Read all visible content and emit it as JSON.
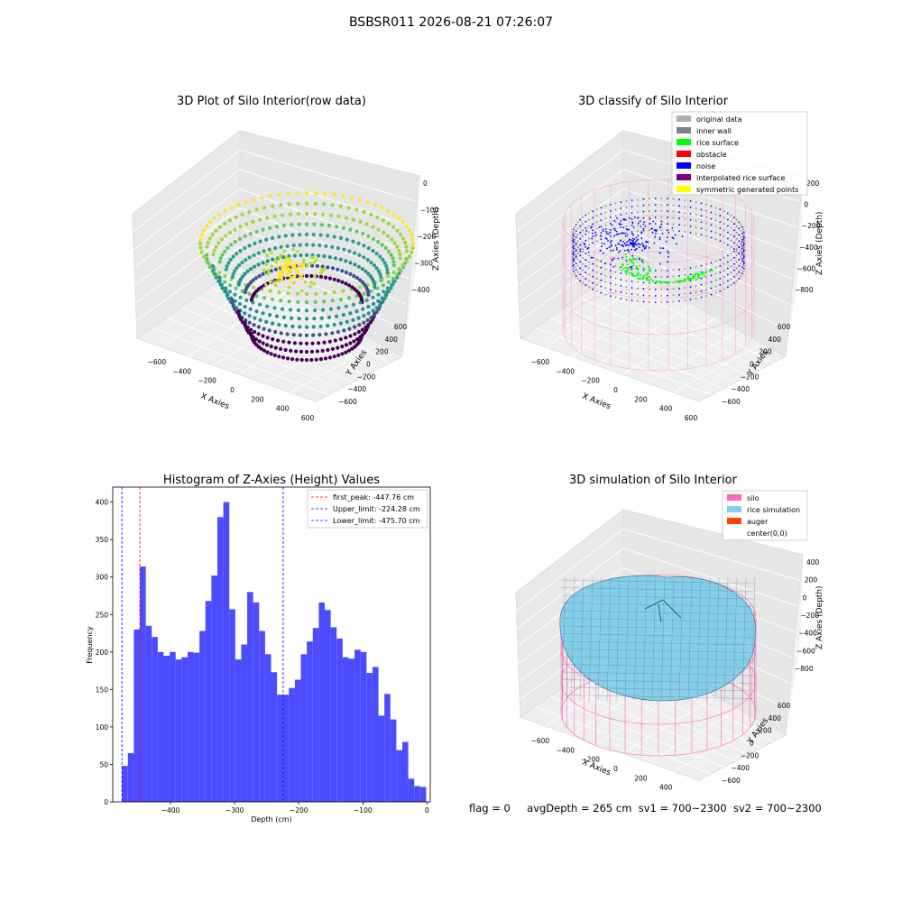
{
  "suptitle": "BSBSR011 2026-08-21 07:26:07",
  "footer": {
    "flag": "flag = 0",
    "avgDepth": "avgDepth = 265 cm",
    "sv1": "sv1 = 700~2300",
    "sv2": "sv2 = 700~2300"
  },
  "colors": {
    "pink": "#ff69b4",
    "skyblue": "#87ceeb",
    "orangered": "#ff4500",
    "hist_bar": "#4b4bff",
    "rice": "#00ff00",
    "noise": "#0000ff"
  },
  "chart_data": [
    {
      "type": "scatter",
      "dimensions": 3,
      "title": "3D Plot of Silo Interior(row data)",
      "xlabel": "X Axies",
      "ylabel": "Y Axies",
      "zlabel": "Z Axies (Depth)",
      "x_ticks": [
        "−600",
        "−400",
        "−200",
        "0",
        "200",
        "400",
        "600"
      ],
      "y_ticks": [
        "−600",
        "−400",
        "−200",
        "0",
        "200",
        "400",
        "600"
      ],
      "z_ticks": [
        "0",
        "−100",
        "−200",
        "−300",
        "−400"
      ],
      "xlim": [
        -700,
        600
      ],
      "ylim": [
        -700,
        600
      ],
      "zlim": [
        -480,
        0
      ],
      "colormap": "viridis"
    },
    {
      "type": "scatter",
      "dimensions": 3,
      "title": "3D classify of Silo Interior",
      "xlabel": "X Axies",
      "ylabel": "Y Axies",
      "zlabel": "Z Axies (Depth)",
      "x_ticks": [
        "−600",
        "−400",
        "−200",
        "0",
        "200",
        "400",
        "600"
      ],
      "y_ticks": [
        "−600",
        "−400",
        "−200",
        "0",
        "200",
        "400",
        "600"
      ],
      "z_ticks": [
        "200",
        "0",
        "−200",
        "−400",
        "−600",
        "−800"
      ],
      "zlim": [
        -900,
        300
      ],
      "legend": {
        "position": "top-right",
        "items": [
          {
            "label": "original data",
            "color": "#b0b0b0"
          },
          {
            "label": "inner wall",
            "color": "#808080"
          },
          {
            "label": "rice surface",
            "color": "#00ff00"
          },
          {
            "label": "obstacle",
            "color": "#ff0000"
          },
          {
            "label": "noise",
            "color": "#0000ff"
          },
          {
            "label": "interpolated rice surface",
            "color": "#800080"
          },
          {
            "label": "symmetric generated points",
            "color": "#ffff00"
          }
        ]
      }
    },
    {
      "type": "bar",
      "title": "Histogram of Z-Axies (Height) Values",
      "xlabel": "Depth (cm)",
      "ylabel": "Frequency",
      "xlim": [
        -490,
        5
      ],
      "ylim": [
        0,
        420
      ],
      "x_ticks": [
        -400,
        -300,
        -200,
        -100,
        0
      ],
      "x_tick_labels": [
        "−400",
        "−300",
        "−200",
        "−100",
        "0"
      ],
      "y_ticks": [
        0,
        50,
        100,
        150,
        200,
        250,
        300,
        350,
        400
      ],
      "y_tick_labels": [
        "0",
        "50",
        "100",
        "150",
        "200",
        "250",
        "300",
        "350",
        "400"
      ],
      "bin_start": -475.7,
      "bin_width": 9.3,
      "values": [
        48,
        65,
        230,
        314,
        235,
        220,
        200,
        195,
        200,
        190,
        193,
        200,
        199,
        228,
        268,
        302,
        380,
        400,
        257,
        190,
        210,
        280,
        266,
        228,
        197,
        173,
        143,
        143,
        152,
        163,
        197,
        214,
        232,
        266,
        256,
        233,
        218,
        193,
        191,
        203,
        200,
        172,
        180,
        115,
        144,
        110,
        69,
        80,
        31,
        21,
        20
      ],
      "color": "#4b4bff",
      "lines": [
        {
          "label": "first_peak: -447.76 cm",
          "x": -447.76,
          "color": "#ff0000"
        },
        {
          "label": "Upper_limit: -224.28 cm",
          "x": -224.28,
          "color": "#0000ff"
        },
        {
          "label": "Lower_limit: -475.70 cm",
          "x": -475.7,
          "color": "#0000ff"
        }
      ],
      "legend": {
        "position": "top-right"
      }
    },
    {
      "type": "surface",
      "dimensions": 3,
      "title": "3D simulation of Silo Interior",
      "xlabel": "X Axies",
      "ylabel": "Y Axies",
      "zlabel": "Z Axies (Depth)",
      "x_ticks": [
        "−600",
        "−400",
        "−200",
        "0",
        "200",
        "400",
        "600"
      ],
      "y_ticks": [
        "−600",
        "−400",
        "−200",
        "0",
        "200",
        "400",
        "600"
      ],
      "z_ticks": [
        "400",
        "200",
        "0",
        "−200",
        "−400",
        "−600",
        "−800"
      ],
      "zlim": [
        -900,
        500
      ],
      "legend": {
        "position": "top-right",
        "items": [
          {
            "label": "silo",
            "color": "#ff69b4"
          },
          {
            "label": "rice simulation",
            "color": "#87ceeb"
          },
          {
            "label": "auger",
            "color": "#ff4500"
          },
          {
            "label": "center(0,0)",
            "color": "#ffffff"
          }
        ]
      }
    }
  ]
}
